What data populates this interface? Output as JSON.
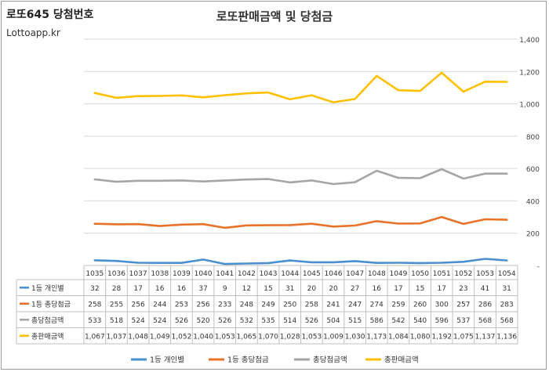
{
  "header": {
    "brand_title": "로또645 당첨번호",
    "brand_site": "Lottoapp.kr"
  },
  "chart_data": {
    "type": "line",
    "title": "로또판매금액 및 당첨금",
    "x": [
      1035,
      1036,
      1037,
      1038,
      1039,
      1040,
      1041,
      1042,
      1043,
      1044,
      1045,
      1046,
      1047,
      1048,
      1049,
      1050,
      1051,
      1052,
      1053,
      1054
    ],
    "ylim": [
      0,
      1400
    ],
    "yticks": [
      0,
      200,
      400,
      600,
      800,
      1000,
      1200,
      1400
    ],
    "ytick_labels": [
      "-",
      "200",
      "400",
      "600",
      "800",
      "1,000",
      "1,200",
      "1,400"
    ],
    "grid": true,
    "legend_position": "bottom",
    "series": [
      {
        "name": "1등 개인별",
        "color": "#4a8fd0",
        "values": [
          32,
          28,
          17,
          16,
          16,
          37,
          9,
          12,
          15,
          31,
          20,
          20,
          27,
          16,
          17,
          15,
          17,
          23,
          41,
          31
        ],
        "labels": [
          "32",
          "28",
          "17",
          "16",
          "16",
          "37",
          "9",
          "12",
          "15",
          "31",
          "20",
          "20",
          "27",
          "16",
          "17",
          "15",
          "17",
          "23",
          "41",
          "31"
        ]
      },
      {
        "name": "1등 총당첨금",
        "color": "#e8722a",
        "values": [
          258,
          255,
          256,
          244,
          253,
          256,
          233,
          248,
          249,
          250,
          258,
          241,
          247,
          274,
          259,
          260,
          300,
          257,
          286,
          283
        ],
        "labels": [
          "258",
          "255",
          "256",
          "244",
          "253",
          "256",
          "233",
          "248",
          "249",
          "250",
          "258",
          "241",
          "247",
          "274",
          "259",
          "260",
          "300",
          "257",
          "286",
          "283"
        ]
      },
      {
        "name": "총당첨금액",
        "color": "#a5a5a5",
        "values": [
          533,
          518,
          524,
          524,
          526,
          520,
          526,
          532,
          535,
          514,
          526,
          504,
          515,
          586,
          542,
          540,
          596,
          537,
          568,
          568
        ],
        "labels": [
          "533",
          "518",
          "524",
          "524",
          "526",
          "520",
          "526",
          "532",
          "535",
          "514",
          "526",
          "504",
          "515",
          "586",
          "542",
          "540",
          "596",
          "537",
          "568",
          "568"
        ]
      },
      {
        "name": "총판매금액",
        "color": "#ffc000",
        "values": [
          1067,
          1037,
          1048,
          1049,
          1052,
          1040,
          1053,
          1065,
          1070,
          1028,
          1053,
          1009,
          1030,
          1173,
          1084,
          1080,
          1192,
          1075,
          1137,
          1136
        ],
        "labels": [
          "1,067",
          "1,037",
          "1,048",
          "1,049",
          "1,052",
          "1,040",
          "1,053",
          "1,065",
          "1,070",
          "1,028",
          "1,053",
          "1,009",
          "1,030",
          "1,173",
          "1,084",
          "1,080",
          "1,192",
          "1,075",
          "1,137",
          "1,136"
        ]
      }
    ]
  }
}
